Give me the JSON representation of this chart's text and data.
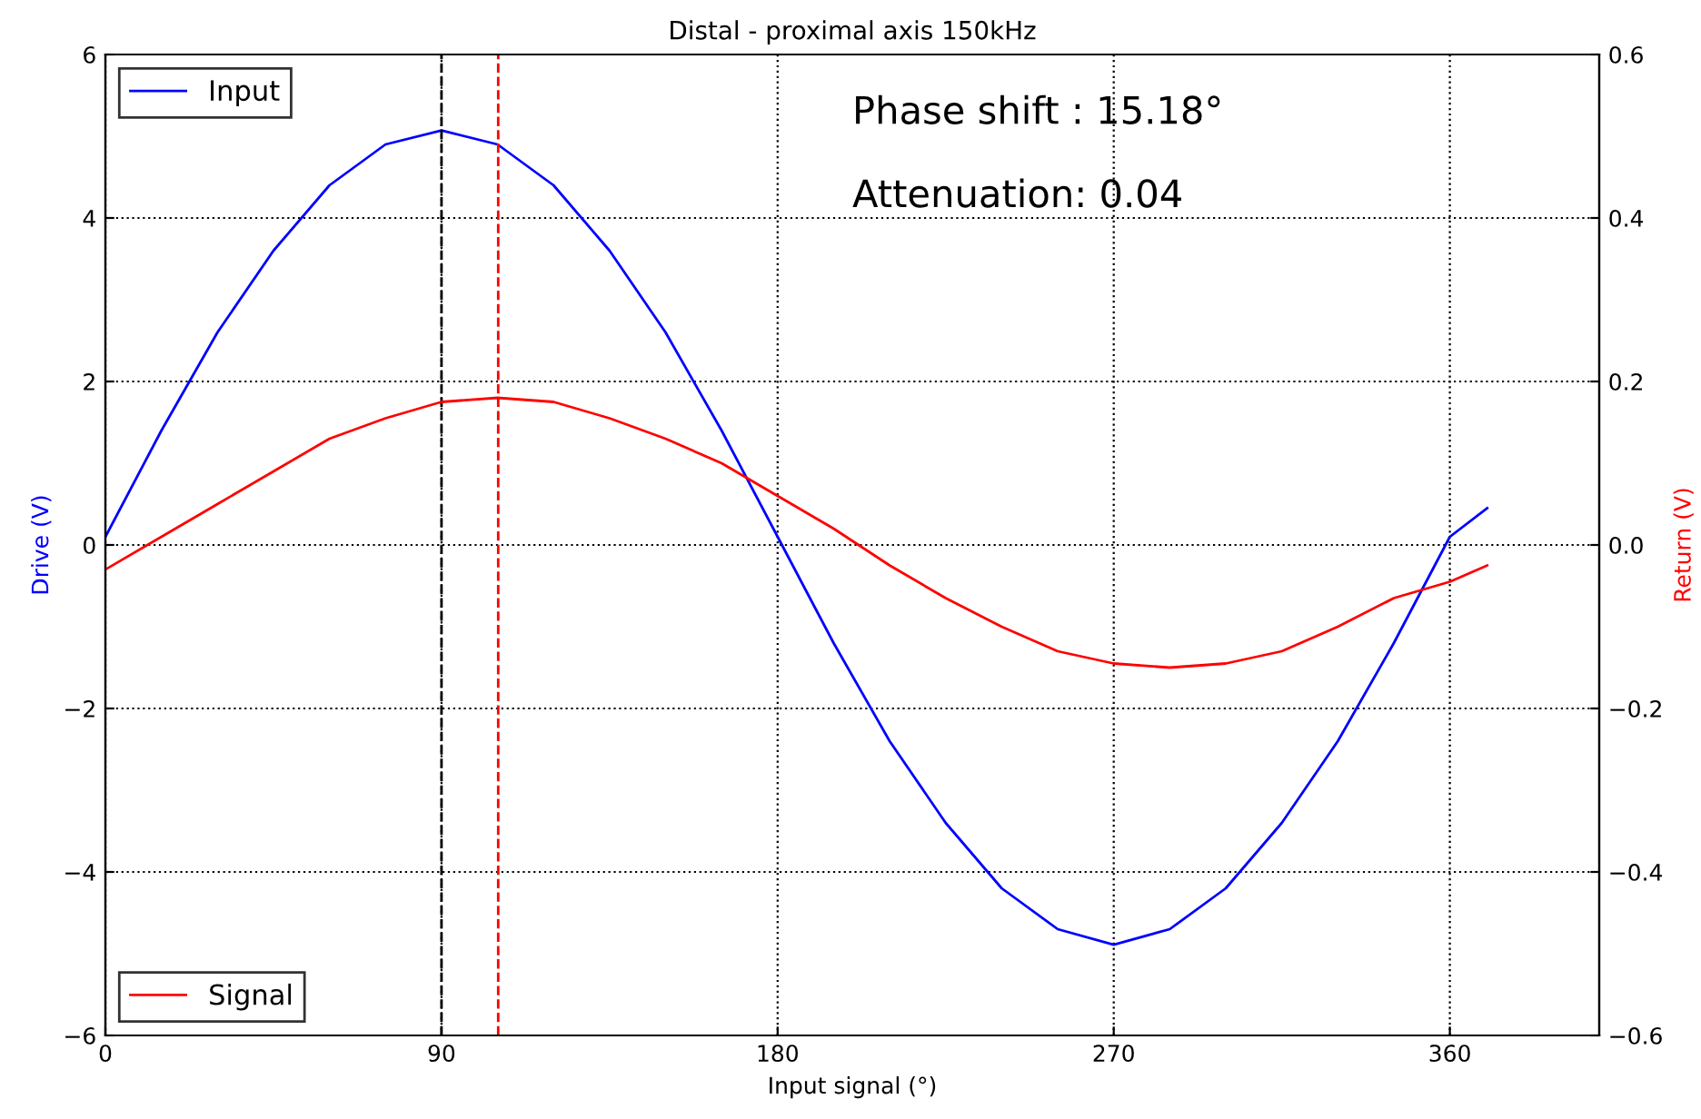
{
  "chart_data": {
    "type": "line",
    "title": "Distal - proximal axis 150kHz",
    "xlabel": "Input signal (°)",
    "ylabel": "Drive (V)",
    "y2label": "Return (V)",
    "annotations": [
      "Phase shift : 15.18°",
      "Attenuation: 0.04"
    ],
    "x": [
      0,
      15,
      30,
      45,
      60,
      75,
      90,
      105,
      120,
      135,
      150,
      165,
      180,
      195,
      210,
      225,
      240,
      255,
      270,
      285,
      300,
      315,
      330,
      345,
      360,
      370
    ],
    "series": [
      {
        "name": "Input",
        "color": "#0000ff",
        "values": [
          0.1,
          1.4,
          2.6,
          3.6,
          4.4,
          4.9,
          5.07,
          4.9,
          4.4,
          3.6,
          2.6,
          1.4,
          0.1,
          -1.2,
          -2.4,
          -3.4,
          -4.2,
          -4.7,
          -4.89,
          -4.7,
          -4.2,
          -3.4,
          -2.4,
          -1.2,
          0.1,
          0.45
        ]
      },
      {
        "name": "Signal",
        "color": "#ff0000",
        "axis": "y2",
        "values": [
          -0.03,
          0.01,
          0.05,
          0.09,
          0.13,
          0.155,
          0.175,
          0.18,
          0.175,
          0.155,
          0.13,
          0.1,
          0.06,
          0.02,
          -0.025,
          -0.065,
          -0.1,
          -0.13,
          -0.145,
          -0.15,
          -0.145,
          -0.13,
          -0.1,
          -0.065,
          -0.045,
          -0.025
        ]
      }
    ],
    "xlim": [
      0,
      400
    ],
    "xticks": [
      0,
      90,
      180,
      270,
      360
    ],
    "ylim": [
      -6,
      6
    ],
    "yticks": [
      {
        "value": -6,
        "label": "−6"
      },
      {
        "value": -4,
        "label": "−4"
      },
      {
        "value": -2,
        "label": "−2"
      },
      0,
      2,
      4,
      6
    ],
    "y2lim": [
      -0.6,
      0.6
    ],
    "y2ticks": [
      {
        "value": -0.6,
        "label": "−0.6"
      },
      {
        "value": -0.4,
        "label": "−0.4"
      },
      {
        "value": -0.2,
        "label": "−0.2"
      },
      {
        "value": 0,
        "label": "0.0"
      },
      0.2,
      0.4,
      0.6
    ],
    "ref_lines": [
      {
        "axis": "x",
        "value": 90,
        "color": "#000000",
        "line_style": "dashed"
      },
      {
        "axis": "x",
        "value": 105.18,
        "color": "#ff0000",
        "line_style": "dashed"
      }
    ],
    "grid": true,
    "legend": "left",
    "line_style": "solid"
  }
}
